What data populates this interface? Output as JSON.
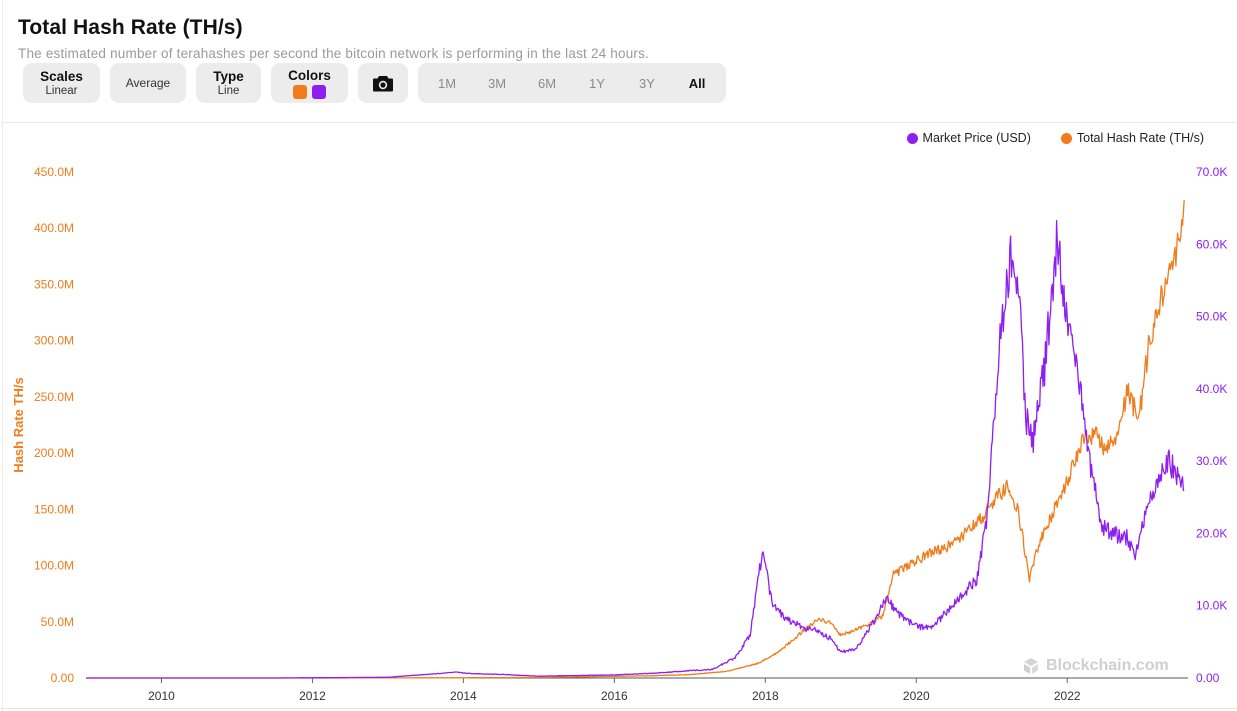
{
  "header": {
    "title": "Total Hash Rate (TH/s)",
    "subtitle": "The estimated number of terahashes per second the bitcoin network is performing in the last 24 hours."
  },
  "toolbar": {
    "scales_label": "Scales",
    "scales_value": "Linear",
    "average_label": "Average",
    "type_label": "Type",
    "type_value": "Line",
    "colors_label": "Colors",
    "color_primary": "#f07c1b",
    "color_secondary": "#8f1ef0",
    "camera_icon": "camera-icon",
    "ranges": [
      "1M",
      "3M",
      "6M",
      "1Y",
      "3Y",
      "All"
    ],
    "active_range": "All"
  },
  "legend": {
    "price_label": "Market Price (USD)",
    "hash_label": "Total Hash Rate (TH/s)"
  },
  "watermark": "Blockchain.com",
  "chart_data": {
    "type": "line",
    "ylabel": "Hash Rate TH/s",
    "x_ticks": [
      "2010",
      "2012",
      "2014",
      "2016",
      "2018",
      "2020",
      "2022"
    ],
    "y_left_ticks": [
      "0.00",
      "50.0M",
      "100.0M",
      "150.0M",
      "200.0M",
      "250.0M",
      "300.0M",
      "350.0M",
      "400.0M",
      "450.0M"
    ],
    "y_right_ticks": [
      "0.00",
      "10.0K",
      "20.0K",
      "30.0K",
      "40.0K",
      "50.0K",
      "60.0K",
      "70.0K"
    ],
    "ylim_left": [
      0,
      450000000
    ],
    "ylim_right": [
      0,
      70000
    ],
    "xlim": [
      2009.0,
      2023.6
    ],
    "grid": false,
    "legend_position": "top-right",
    "series": [
      {
        "name": "Total Hash Rate (TH/s)",
        "axis": "left",
        "color": "#f07c1b",
        "x": [
          2009.0,
          2012.0,
          2014.0,
          2015.0,
          2016.0,
          2016.5,
          2017.0,
          2017.5,
          2017.9,
          2018.1,
          2018.3,
          2018.5,
          2018.7,
          2018.85,
          2019.0,
          2019.2,
          2019.4,
          2019.55,
          2019.7,
          2019.9,
          2020.2,
          2020.35,
          2020.5,
          2020.7,
          2020.9,
          2021.0,
          2021.2,
          2021.35,
          2021.5,
          2021.6,
          2021.8,
          2022.0,
          2022.2,
          2022.4,
          2022.5,
          2022.65,
          2022.8,
          2022.95,
          2023.1,
          2023.3,
          2023.45,
          2023.55
        ],
        "y": [
          0,
          0,
          200000,
          500000,
          1500000,
          2000000,
          3000000,
          6000000,
          13000000,
          20000000,
          30000000,
          42000000,
          52000000,
          50000000,
          38000000,
          43000000,
          48000000,
          55000000,
          92000000,
          100000000,
          112000000,
          115000000,
          120000000,
          132000000,
          145000000,
          155000000,
          170000000,
          150000000,
          87000000,
          115000000,
          145000000,
          175000000,
          210000000,
          220000000,
          200000000,
          215000000,
          255000000,
          230000000,
          305000000,
          350000000,
          380000000,
          425000000
        ]
      },
      {
        "name": "Market Price (USD)",
        "axis": "right",
        "color": "#8f1ef0",
        "x": [
          2009.0,
          2011.5,
          2013.0,
          2013.9,
          2014.1,
          2014.5,
          2015.0,
          2016.0,
          2016.5,
          2017.0,
          2017.3,
          2017.6,
          2017.8,
          2017.96,
          2018.1,
          2018.3,
          2018.5,
          2018.7,
          2018.85,
          2019.0,
          2019.2,
          2019.45,
          2019.6,
          2019.8,
          2020.0,
          2020.2,
          2020.4,
          2020.6,
          2020.8,
          2020.95,
          2021.1,
          2021.25,
          2021.35,
          2021.45,
          2021.55,
          2021.7,
          2021.87,
          2022.0,
          2022.15,
          2022.3,
          2022.45,
          2022.6,
          2022.8,
          2022.9,
          2023.05,
          2023.2,
          2023.35,
          2023.45,
          2023.55
        ],
        "y": [
          0,
          0,
          100,
          800,
          600,
          500,
          250,
          430,
          650,
          1000,
          1200,
          2800,
          6000,
          17500,
          10000,
          8000,
          7000,
          6500,
          5500,
          3600,
          4000,
          8000,
          11000,
          8500,
          7200,
          6800,
          9200,
          11500,
          13500,
          23000,
          47000,
          58000,
          55000,
          36000,
          33000,
          43000,
          61000,
          48000,
          42000,
          30000,
          21000,
          20000,
          19500,
          16500,
          23000,
          27000,
          30000,
          28000,
          26000
        ]
      }
    ]
  }
}
